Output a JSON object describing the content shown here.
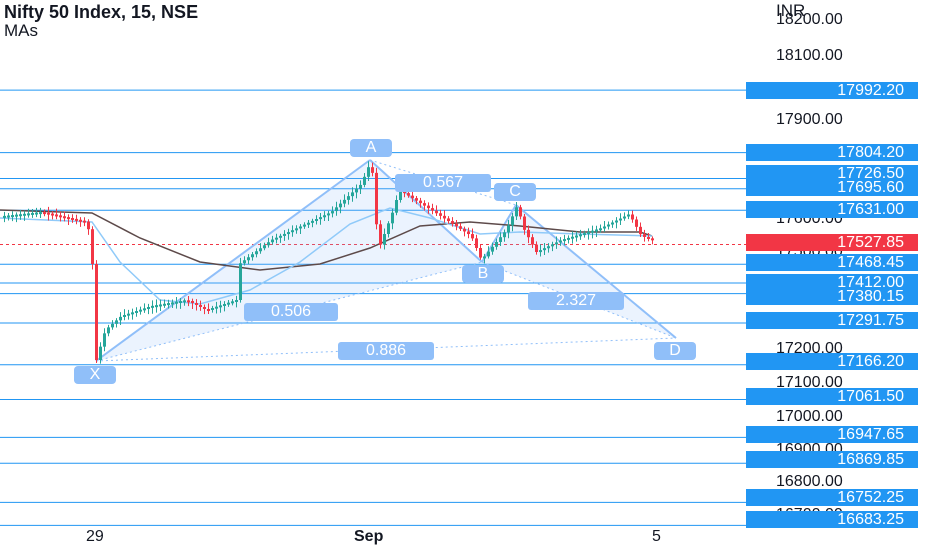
{
  "symbol": {
    "title": "Nifty 50 Index, 15, NSE",
    "indicator": "MAs"
  },
  "currency": "INR",
  "price_axis": [
    "18200.00",
    "18100.00",
    "17900.00",
    "17600.00",
    "17500.00",
    "17200.00",
    "17100.00",
    "17000.00",
    "16900.00",
    "16800.00",
    "16700.00"
  ],
  "horizontal_levels": [
    "17992.20",
    "17804.20",
    "17726.50",
    "17695.60",
    "17631.00",
    "17527.85",
    "17468.45",
    "17412.00",
    "17380.15",
    "17291.75",
    "17166.20",
    "17061.50",
    "16947.65",
    "16869.85",
    "16752.25",
    "16683.25"
  ],
  "last_price": "17527.85",
  "time_axis": [
    "29",
    "Sep",
    "5"
  ],
  "pattern_points": [
    "X",
    "A",
    "B",
    "C",
    "D"
  ],
  "pattern_ratios": [
    "0.506",
    "0.567",
    "2.327",
    "0.886"
  ],
  "colors": {
    "up": "#26a69a",
    "down": "#f23645",
    "level_line": "#2196f3",
    "pattern": "#90bff9",
    "ma_fast": "#90caf9",
    "ma_slow": "#5d4a4a"
  }
}
